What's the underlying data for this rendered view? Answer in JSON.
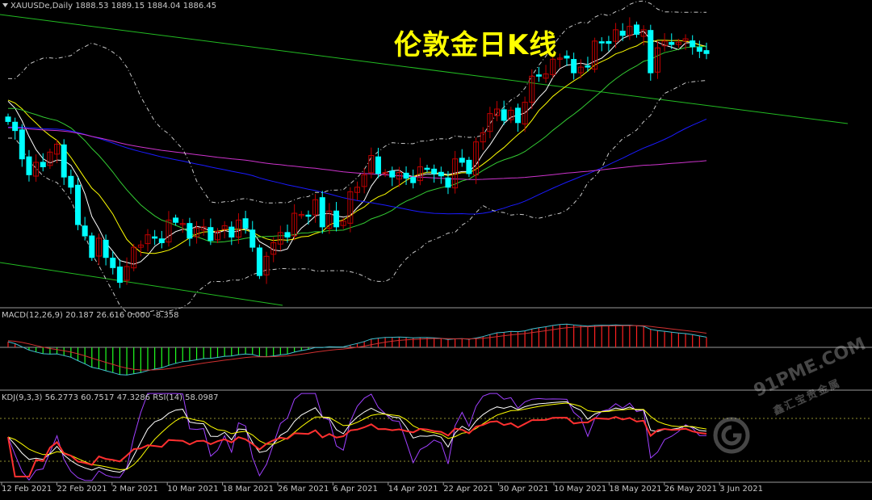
{
  "chart_header": {
    "triangle_icon": "dropdown-triangle-icon",
    "symbol_text": "XAUUSDe,Daily  1888.53 1889.15 1884.04 1886.45",
    "title": "伦敦金日K线"
  },
  "macd_header": "MACD(12,26,9) 20.187 26.616 0.000 -8.358",
  "kdj_header": "KDJ(9,3,3) 56.2773 60.7517 47.3286  RSI(14) 58.0987",
  "watermark": {
    "url": "91PME.COM",
    "cn": "鑫汇宝贵金属",
    "logo_icon": "circle-logo-icon"
  },
  "colors": {
    "background": "#000000",
    "up_candle": "#c00000",
    "down_candle": "#00ffff",
    "ma_fast": "#ffffff",
    "ma_yellow": "#ffff00",
    "ma_green": "#33cc33",
    "ma_blue": "#1a1aff",
    "ma_magenta": "#cc33cc",
    "bollinger": "#c8c8c8",
    "trend_line": "#22bb22",
    "macd_signal": "#d03030",
    "macd_line": "#40c0d0",
    "rsi": "#ff3030",
    "kdj_k": "#ffffff",
    "kdj_d": "#ffff00",
    "kdj_j": "#a040ff"
  },
  "chart_data": {
    "type": "candlestick",
    "symbol": "XAUUSDe",
    "timeframe": "Daily",
    "x_tick_labels": [
      "12 Feb 2021",
      "22 Feb 2021",
      "2 Mar 2021",
      "10 Mar 2021",
      "18 Mar 2021",
      "26 Mar 2021",
      "6 Apr 2021",
      "14 Apr 2021",
      "22 Apr 2021",
      "30 Apr 2021",
      "10 May 2021",
      "18 May 2021",
      "26 May 2021",
      "3 Jun 2021"
    ],
    "price_range_approx": [
      1673,
      1919
    ],
    "closes_approx": [
      1826,
      1818,
      1793,
      1779,
      1790,
      1786,
      1799,
      1806,
      1777,
      1768,
      1735,
      1725,
      1706,
      1723,
      1706,
      1697,
      1684,
      1698,
      1715,
      1717,
      1726,
      1723,
      1719,
      1739,
      1737,
      1736,
      1723,
      1732,
      1733,
      1721,
      1729,
      1734,
      1724,
      1739,
      1732,
      1715,
      1690,
      1707,
      1719,
      1728,
      1724,
      1745,
      1744,
      1743,
      1757,
      1733,
      1747,
      1733,
      1738,
      1764,
      1768,
      1779,
      1796,
      1780,
      1781,
      1777,
      1781,
      1776,
      1772,
      1786,
      1784,
      1780,
      1778,
      1768,
      1793,
      1790,
      1780,
      1808,
      1816,
      1833,
      1837,
      1827,
      1836,
      1825,
      1843,
      1866,
      1866,
      1868,
      1881,
      1882,
      1882,
      1869,
      1874,
      1874,
      1897,
      1896,
      1895,
      1907,
      1902,
      1910,
      1903,
      1907,
      1869,
      1891,
      1897,
      1894,
      1896,
      1899,
      1892,
      1888,
      1886
    ],
    "macd": {
      "value": 20.187,
      "signal": 26.616,
      "hist": 0.0,
      "extra": -8.358,
      "params": "12,26,9"
    },
    "kdj": {
      "k": 56.2773,
      "d": 60.7517,
      "j": 47.3286,
      "params": "9,3,3"
    },
    "rsi": {
      "value": 58.0987,
      "period": 14
    }
  }
}
